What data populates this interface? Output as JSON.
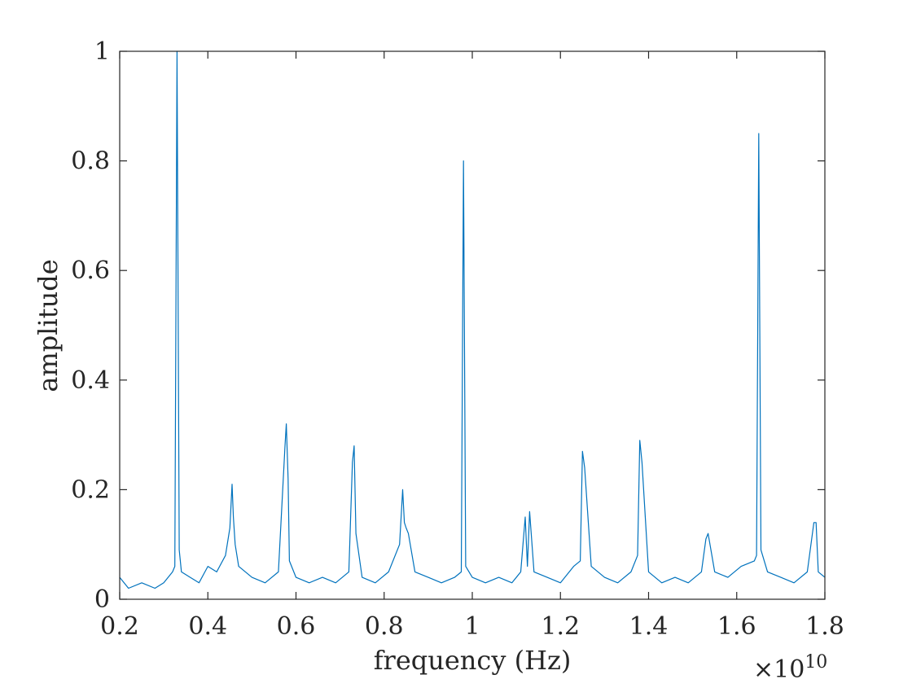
{
  "chart_data": {
    "type": "line",
    "title": "",
    "xlabel": "frequency (Hz)",
    "ylabel": "amplitude",
    "x_exponent_label": {
      "base": "×10",
      "power": "10"
    },
    "xlim": [
      0.2,
      1.8
    ],
    "ylim": [
      0,
      1
    ],
    "xticks": [
      0.2,
      0.4,
      0.6,
      0.8,
      1.0,
      1.2,
      1.4,
      1.6,
      1.8
    ],
    "xtick_labels": [
      "0.2",
      "0.4",
      "0.6",
      "0.8",
      "1",
      "1.2",
      "1.4",
      "1.6",
      "1.8"
    ],
    "yticks": [
      0,
      0.2,
      0.4,
      0.6,
      0.8,
      1
    ],
    "ytick_labels": [
      "0",
      "0.2",
      "0.4",
      "0.6",
      "0.8",
      "1"
    ],
    "grid": false,
    "line_color": "#0072BD",
    "series": [
      {
        "x": [
          0.2,
          0.22,
          0.25,
          0.28,
          0.3,
          0.32,
          0.325,
          0.33,
          0.335,
          0.34,
          0.36,
          0.38,
          0.4,
          0.42,
          0.44,
          0.45,
          0.455,
          0.458,
          0.462,
          0.47,
          0.5,
          0.53,
          0.56,
          0.575,
          0.578,
          0.582,
          0.585,
          0.6,
          0.63,
          0.66,
          0.69,
          0.72,
          0.728,
          0.732,
          0.736,
          0.75,
          0.78,
          0.81,
          0.835,
          0.842,
          0.846,
          0.85,
          0.855,
          0.87,
          0.9,
          0.93,
          0.96,
          0.975,
          0.98,
          0.985,
          1.0,
          1.03,
          1.06,
          1.09,
          1.11,
          1.12,
          1.125,
          1.13,
          1.14,
          1.17,
          1.2,
          1.23,
          1.245,
          1.25,
          1.255,
          1.27,
          1.3,
          1.33,
          1.36,
          1.375,
          1.38,
          1.385,
          1.4,
          1.43,
          1.46,
          1.49,
          1.52,
          1.53,
          1.535,
          1.55,
          1.58,
          1.61,
          1.64,
          1.645,
          1.65,
          1.655,
          1.67,
          1.7,
          1.73,
          1.76,
          1.775,
          1.78,
          1.785,
          1.8
        ],
        "y": [
          0.04,
          0.02,
          0.03,
          0.02,
          0.03,
          0.05,
          0.06,
          1.0,
          0.09,
          0.05,
          0.04,
          0.03,
          0.06,
          0.05,
          0.08,
          0.13,
          0.21,
          0.15,
          0.1,
          0.06,
          0.04,
          0.03,
          0.05,
          0.28,
          0.32,
          0.22,
          0.07,
          0.04,
          0.03,
          0.04,
          0.03,
          0.05,
          0.25,
          0.28,
          0.12,
          0.04,
          0.03,
          0.05,
          0.1,
          0.2,
          0.14,
          0.13,
          0.12,
          0.05,
          0.04,
          0.03,
          0.04,
          0.05,
          0.8,
          0.06,
          0.04,
          0.03,
          0.04,
          0.03,
          0.05,
          0.15,
          0.06,
          0.16,
          0.05,
          0.04,
          0.03,
          0.06,
          0.07,
          0.27,
          0.24,
          0.06,
          0.04,
          0.03,
          0.05,
          0.08,
          0.29,
          0.25,
          0.05,
          0.03,
          0.04,
          0.03,
          0.05,
          0.11,
          0.12,
          0.05,
          0.04,
          0.06,
          0.07,
          0.08,
          0.85,
          0.09,
          0.05,
          0.04,
          0.03,
          0.05,
          0.14,
          0.14,
          0.05,
          0.04
        ]
      }
    ]
  }
}
